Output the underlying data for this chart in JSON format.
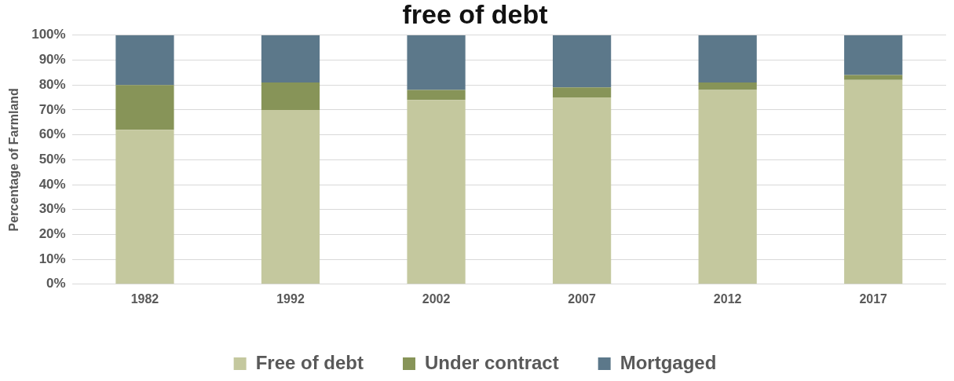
{
  "chart_data": {
    "type": "bar",
    "title": "free of debt",
    "ylabel": "Percentage of Farmland",
    "categories": [
      "1982",
      "1992",
      "2002",
      "2007",
      "2012",
      "2017"
    ],
    "stacked": true,
    "ylim": [
      0,
      100
    ],
    "yticks": [
      {
        "value": 0,
        "label": "0%"
      },
      {
        "value": 10,
        "label": "10%"
      },
      {
        "value": 20,
        "label": "20%"
      },
      {
        "value": 30,
        "label": "30%"
      },
      {
        "value": 40,
        "label": "40%"
      },
      {
        "value": 50,
        "label": "50%"
      },
      {
        "value": 60,
        "label": "60%"
      },
      {
        "value": 70,
        "label": "70%"
      },
      {
        "value": 80,
        "label": "80%"
      },
      {
        "value": 90,
        "label": "90%"
      },
      {
        "value": 100,
        "label": "100%"
      }
    ],
    "grid": "y",
    "legend": "bottom",
    "series": [
      {
        "name": "Free of debt",
        "color": "#c4c89e",
        "values": [
          62,
          70,
          74,
          75,
          78,
          82
        ]
      },
      {
        "name": "Under contract",
        "color": "#879458",
        "values": [
          18,
          11,
          4,
          4,
          3,
          2
        ]
      },
      {
        "name": "Mortgaged",
        "color": "#5c788a",
        "values": [
          20,
          19,
          22,
          21,
          19,
          16
        ]
      }
    ]
  }
}
